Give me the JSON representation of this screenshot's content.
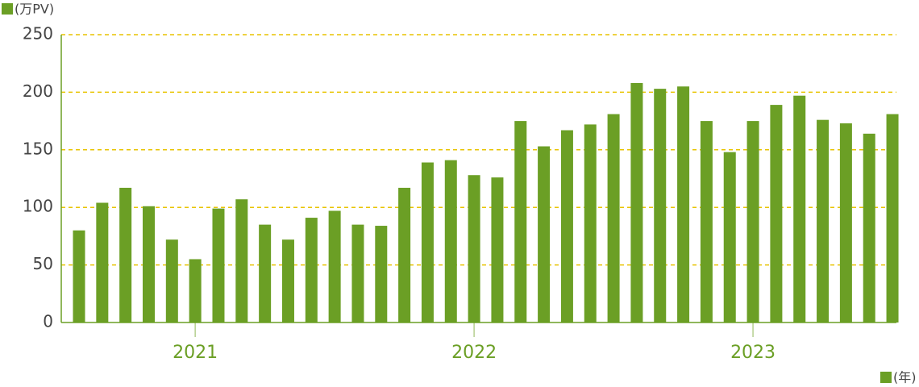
{
  "chart_data": {
    "type": "bar",
    "y_label": "(万PV)",
    "x_label": "(年)",
    "categories": [
      null,
      null,
      null,
      null,
      null,
      "2021",
      null,
      null,
      null,
      null,
      null,
      null,
      null,
      null,
      null,
      null,
      null,
      "2022",
      null,
      null,
      null,
      null,
      null,
      null,
      null,
      null,
      null,
      null,
      null,
      "2023",
      null,
      null,
      null,
      null,
      null,
      null
    ],
    "values": [
      80,
      104,
      117,
      101,
      72,
      55,
      99,
      107,
      85,
      72,
      91,
      97,
      85,
      84,
      117,
      139,
      141,
      128,
      126,
      175,
      153,
      167,
      172,
      181,
      208,
      203,
      205,
      175,
      148,
      175,
      189,
      197,
      176,
      173,
      164,
      181
    ],
    "color": "#6b9f25",
    "ylim": [
      0,
      250
    ],
    "yticks": [
      0,
      50,
      100,
      150,
      200,
      250
    ],
    "grid": true,
    "grid_color": "#e8c400"
  }
}
